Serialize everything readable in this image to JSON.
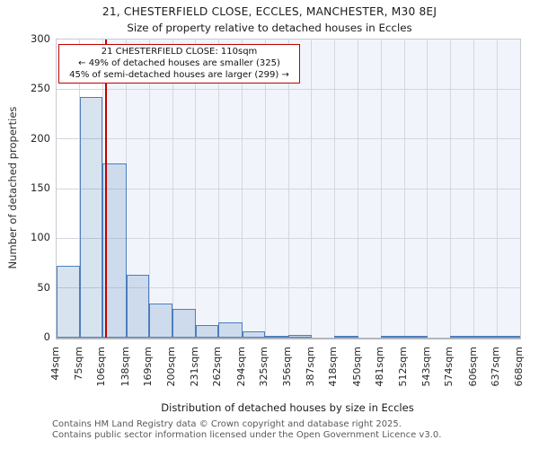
{
  "title": "21, CHESTERFIELD CLOSE, ECCLES, MANCHESTER, M30 8EJ",
  "subtitle": "Size of property relative to detached houses in Eccles",
  "annotation": {
    "line1": "21 CHESTERFIELD CLOSE: 110sqm",
    "line2": "← 49% of detached houses are smaller (325)",
    "line3": "45% of semi-detached houses are larger (299) →"
  },
  "chart_data": {
    "type": "bar",
    "title": "Size of property relative to detached houses in Eccles",
    "xlabel": "Distribution of detached houses by size in Eccles",
    "ylabel": "Number of detached properties",
    "bin_edges_sqm": [
      44,
      75,
      106,
      138,
      169,
      200,
      231,
      262,
      294,
      325,
      356,
      387,
      418,
      450,
      481,
      512,
      543,
      574,
      606,
      637,
      668
    ],
    "x_tick_labels": [
      "44sqm",
      "75sqm",
      "106sqm",
      "138sqm",
      "169sqm",
      "200sqm",
      "231sqm",
      "262sqm",
      "294sqm",
      "325sqm",
      "356sqm",
      "387sqm",
      "418sqm",
      "450sqm",
      "481sqm",
      "512sqm",
      "543sqm",
      "574sqm",
      "606sqm",
      "637sqm",
      "668sqm"
    ],
    "values": [
      72,
      242,
      175,
      63,
      34,
      29,
      13,
      15,
      6,
      2,
      3,
      0,
      2,
      0,
      1,
      1,
      0,
      1,
      1,
      1
    ],
    "y_ticks": [
      0,
      50,
      100,
      150,
      200,
      250,
      300
    ],
    "ylim": [
      0,
      300
    ],
    "xlim_sqm": [
      44,
      668
    ],
    "grid": true,
    "legend": "none",
    "marker": {
      "value_sqm": 110,
      "shaded_region": "right-of-marker"
    }
  },
  "colors": {
    "bar_fill": "rgba(77,126,188,0.22)",
    "bar_edge": "#4d7ebc",
    "marker_red": "#c00000",
    "annotation_border": "#c00000",
    "gridline": "#d3d7de",
    "shaded_bg": "#f1f5fb",
    "plot_bg": "#ffffff"
  },
  "footer": {
    "line1": "Contains HM Land Registry data © Crown copyright and database right 2025.",
    "line2": "Contains public sector information licensed under the Open Government Licence v3.0."
  }
}
